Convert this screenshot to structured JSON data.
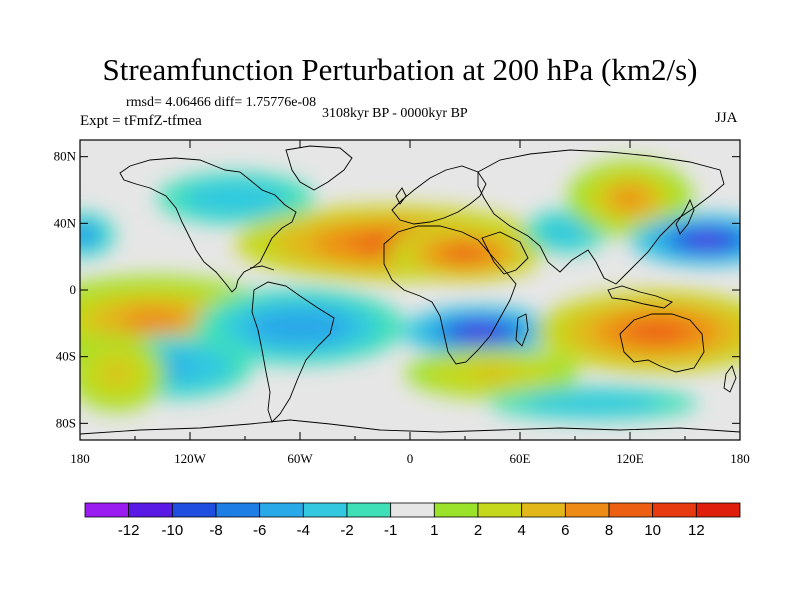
{
  "title": "Streamfunction Perturbation at 200 hPa (km2/s)",
  "stats": "rmsd= 4.06466  diff= 1.75776e-08",
  "experiment": "Expt = tFmfZ-tfmea",
  "period": "3108kyr BP - 0000kyr BP",
  "season": "JJA",
  "axes": {
    "lat_ticks": [
      "80N",
      "40N",
      "0",
      "40S",
      "80S"
    ],
    "lon_ticks": [
      "180",
      "120W",
      "60W",
      "0",
      "60E",
      "120E",
      "180"
    ]
  },
  "colorbar": {
    "labels": [
      "-12",
      "-10",
      "-8",
      "-6",
      "-4",
      "-2",
      "-1",
      "1",
      "2",
      "4",
      "6",
      "8",
      "10",
      "12"
    ],
    "colors": [
      "#9b1cf0",
      "#5a1ae6",
      "#1d4ee0",
      "#1f7ee6",
      "#2aa9e8",
      "#33c8e0",
      "#3fe0b8",
      "#e6e6e6",
      "#9be22a",
      "#c6d81c",
      "#e2b71a",
      "#ee8a16",
      "#ec5e12",
      "#e83a10",
      "#e01e0c"
    ]
  },
  "land_color": "#e6e6e6",
  "coast_color": "#000000",
  "anomalies": [
    {
      "name": "pacific-subtropic-north-low",
      "lon": -178,
      "lat": 33,
      "rlon": 9,
      "rlat": 7,
      "val": -7
    },
    {
      "name": "north-atlantic-low",
      "lon": -95,
      "lat": 55,
      "rlon": 30,
      "rlat": 11,
      "val": -3.5
    },
    {
      "name": "pacific-southeast-high",
      "lon": -140,
      "lat": -18,
      "rlon": 38,
      "rlat": 14,
      "val": 7
    },
    {
      "name": "south-pacific-low",
      "lon": -128,
      "lat": -46,
      "rlon": 22,
      "rlat": 10,
      "val": -4.5
    },
    {
      "name": "south-america-low",
      "lon": -60,
      "lat": -22,
      "rlon": 30,
      "rlat": 12,
      "val": -5.5
    },
    {
      "name": "sahara-high",
      "lon": -10,
      "lat": 28,
      "rlon": 45,
      "rlat": 12,
      "val": 9
    },
    {
      "name": "arabia-high",
      "lon": 30,
      "lat": 22,
      "rlon": 22,
      "rlat": 9,
      "val": 8
    },
    {
      "name": "south-africa-low",
      "lon": 38,
      "lat": -25,
      "rlon": 22,
      "rlat": 8,
      "val": -11
    },
    {
      "name": "indian-ocean-south-high",
      "lon": 45,
      "lat": -50,
      "rlon": 25,
      "rlat": 8,
      "val": 4
    },
    {
      "name": "central-asia-low",
      "lon": 85,
      "lat": 35,
      "rlon": 16,
      "rlat": 9,
      "val": -3
    },
    {
      "name": "siberia-high",
      "lon": 120,
      "lat": 55,
      "rlon": 18,
      "rlat": 12,
      "val": 7
    },
    {
      "name": "north-pacific-low",
      "lon": 162,
      "lat": 30,
      "rlon": 22,
      "rlat": 8,
      "val": -11
    },
    {
      "name": "australia-high",
      "lon": 135,
      "lat": -25,
      "rlon": 35,
      "rlat": 13,
      "val": 8
    },
    {
      "name": "southern-ocean-low",
      "lon": 100,
      "lat": -68,
      "rlon": 40,
      "rlat": 7,
      "val": -3
    },
    {
      "name": "south-pacific-high",
      "lon": -160,
      "lat": -50,
      "rlon": 14,
      "rlat": 12,
      "val": 4
    }
  ]
}
